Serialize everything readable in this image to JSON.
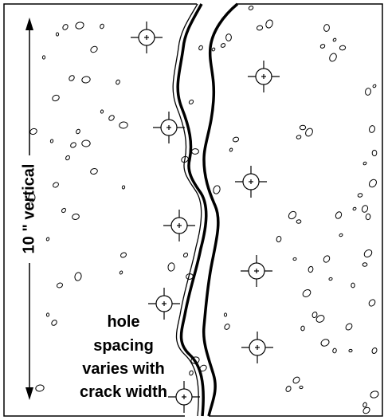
{
  "labels": {
    "dimension": "10 \" vertical",
    "note": [
      "hole",
      "spacing",
      "varies with",
      "crack width"
    ]
  }
}
